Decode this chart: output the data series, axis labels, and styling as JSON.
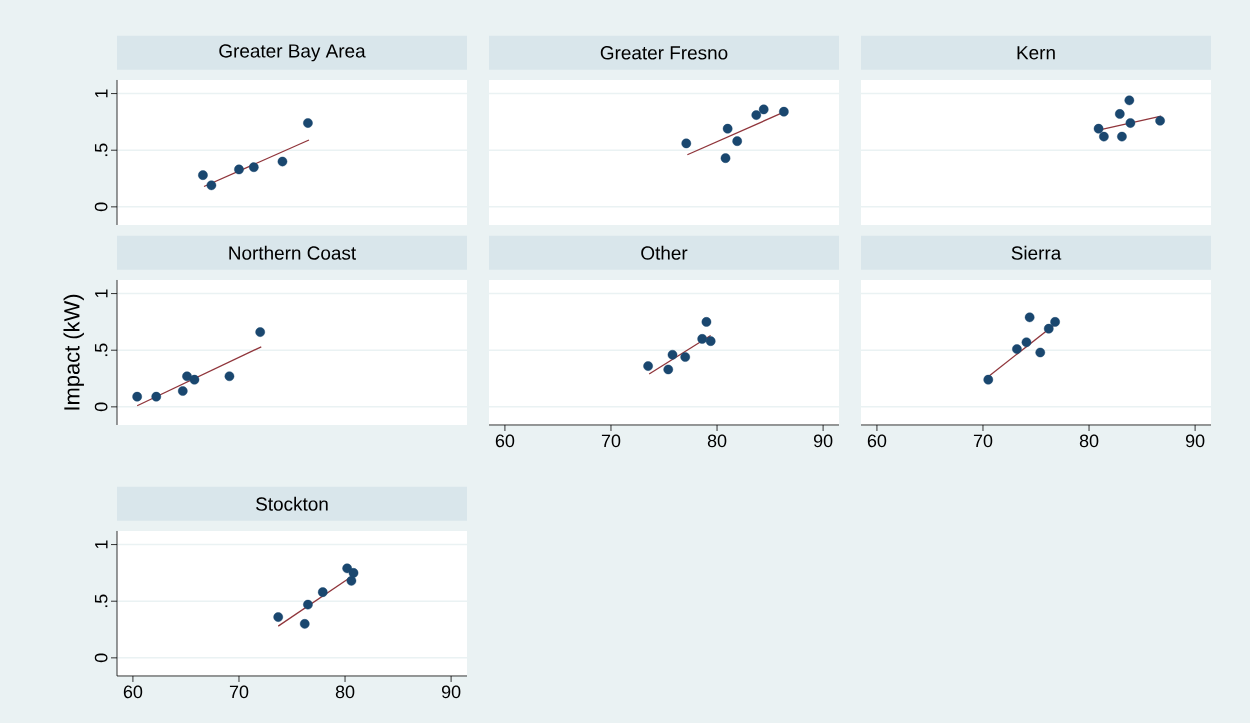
{
  "chart_data": [
    {
      "type": "scatter",
      "title": "Greater Bay Area",
      "xlim": [
        58.5,
        91.5
      ],
      "ylim": [
        -0.16,
        1.12
      ],
      "xticks": [
        60,
        70,
        80,
        90
      ],
      "yticks": [
        {
          "value": 0,
          "label": "0"
        },
        {
          "value": 0.5,
          "label": ".5"
        },
        {
          "value": 1,
          "label": "1"
        }
      ],
      "grid": "y",
      "line_style": "solid",
      "tick_labels": "y",
      "series": [
        {
          "marker": "circle",
          "color": "#1a476f",
          "x": [
            66.6,
            67.4,
            70.0,
            71.4,
            74.1,
            76.5
          ],
          "values": [
            0.28,
            0.19,
            0.33,
            0.35,
            0.4,
            0.74
          ]
        },
        {
          "type": "line",
          "marker": "none",
          "color": "#90353b",
          "x": [
            66.7,
            76.6
          ],
          "values": [
            0.18,
            0.59
          ]
        }
      ]
    },
    {
      "type": "scatter",
      "title": "Greater Fresno",
      "xlim": [
        58.5,
        91.5
      ],
      "ylim": [
        -0.16,
        1.12
      ],
      "xticks": [
        60,
        70,
        80,
        90
      ],
      "yticks": [
        {
          "value": 0,
          "label": null
        },
        {
          "value": 0.5,
          "label": null
        },
        {
          "value": 1,
          "label": null
        }
      ],
      "grid": "y",
      "line_style": "solid",
      "tick_labels": false,
      "series": [
        {
          "marker": "circle",
          "color": "#1a476f",
          "x": [
            77.1,
            81.0,
            80.8,
            81.9,
            83.7,
            84.4,
            86.3
          ],
          "values": [
            0.56,
            0.69,
            0.43,
            0.58,
            0.81,
            0.86,
            0.84
          ]
        },
        {
          "type": "line",
          "marker": "none",
          "color": "#90353b",
          "x": [
            77.2,
            86.4
          ],
          "values": [
            0.46,
            0.84
          ]
        }
      ]
    },
    {
      "type": "scatter",
      "title": "Kern",
      "xlim": [
        58.5,
        91.5
      ],
      "ylim": [
        -0.16,
        1.12
      ],
      "xticks": [
        60,
        70,
        80,
        90
      ],
      "yticks": [
        {
          "value": 0,
          "label": null
        },
        {
          "value": 0.5,
          "label": null
        },
        {
          "value": 1,
          "label": null
        }
      ],
      "grid": "y",
      "line_style": "solid",
      "tick_labels": false,
      "series": [
        {
          "marker": "circle",
          "color": "#1a476f",
          "x": [
            80.9,
            81.4,
            82.9,
            83.1,
            83.8,
            83.9,
            86.7
          ],
          "values": [
            0.69,
            0.62,
            0.82,
            0.62,
            0.94,
            0.74,
            0.76
          ]
        },
        {
          "type": "line",
          "marker": "none",
          "color": "#90353b",
          "x": [
            81.0,
            86.8
          ],
          "values": [
            0.68,
            0.8
          ]
        }
      ]
    },
    {
      "type": "scatter",
      "title": "Northern Coast",
      "ylabel": "Impact (kW)",
      "xlim": [
        58.5,
        91.5
      ],
      "ylim": [
        -0.16,
        1.12
      ],
      "xticks": [
        60,
        70,
        80,
        90
      ],
      "yticks": [
        {
          "value": 0,
          "label": "0"
        },
        {
          "value": 0.5,
          "label": ".5"
        },
        {
          "value": 1,
          "label": "1"
        }
      ],
      "grid": "y",
      "line_style": "solid",
      "tick_labels": "y",
      "series": [
        {
          "marker": "circle",
          "color": "#1a476f",
          "x": [
            60.4,
            62.2,
            64.7,
            65.1,
            65.8,
            69.1,
            72.0
          ],
          "values": [
            0.09,
            0.09,
            0.14,
            0.27,
            0.24,
            0.27,
            0.66
          ]
        },
        {
          "type": "line",
          "marker": "none",
          "color": "#90353b",
          "x": [
            60.4,
            72.1
          ],
          "values": [
            0.01,
            0.53
          ]
        }
      ]
    },
    {
      "type": "scatter",
      "title": "Other",
      "xlim": [
        58.5,
        91.5
      ],
      "ylim": [
        -0.16,
        1.12
      ],
      "xticks": [
        60,
        70,
        80,
        90
      ],
      "yticks": [
        {
          "value": 0,
          "label": null
        },
        {
          "value": 0.5,
          "label": null
        },
        {
          "value": 1,
          "label": null
        }
      ],
      "grid": "y",
      "line_style": "solid",
      "tick_labels": "x",
      "series": [
        {
          "marker": "circle",
          "color": "#1a476f",
          "x": [
            73.5,
            75.4,
            75.8,
            77.0,
            78.6,
            79.0,
            79.4
          ],
          "values": [
            0.36,
            0.33,
            0.46,
            0.44,
            0.6,
            0.75,
            0.58
          ]
        },
        {
          "type": "line",
          "marker": "none",
          "color": "#90353b",
          "x": [
            73.6,
            79.4
          ],
          "values": [
            0.29,
            0.63
          ]
        }
      ]
    },
    {
      "type": "scatter",
      "title": "Sierra",
      "xlim": [
        58.5,
        91.5
      ],
      "ylim": [
        -0.16,
        1.12
      ],
      "xticks": [
        60,
        70,
        80,
        90
      ],
      "yticks": [
        {
          "value": 0,
          "label": null
        },
        {
          "value": 0.5,
          "label": null
        },
        {
          "value": 1,
          "label": null
        }
      ],
      "grid": "y",
      "line_style": "solid",
      "tick_labels": "x",
      "series": [
        {
          "marker": "circle",
          "color": "#1a476f",
          "x": [
            70.5,
            73.2,
            74.1,
            74.4,
            75.4,
            76.2,
            76.8
          ],
          "values": [
            0.24,
            0.51,
            0.57,
            0.79,
            0.48,
            0.69,
            0.75
          ]
        },
        {
          "type": "line",
          "marker": "none",
          "color": "#90353b",
          "x": [
            70.4,
            76.8
          ],
          "values": [
            0.26,
            0.73
          ]
        }
      ]
    },
    {
      "type": "scatter",
      "title": "Stockton",
      "xlim": [
        58.5,
        91.5
      ],
      "ylim": [
        -0.16,
        1.12
      ],
      "xticks": [
        60,
        70,
        80,
        90
      ],
      "yticks": [
        {
          "value": 0,
          "label": "0"
        },
        {
          "value": 0.5,
          "label": ".5"
        },
        {
          "value": 1,
          "label": "1"
        }
      ],
      "grid": "y",
      "line_style": "solid",
      "series": [
        {
          "marker": "circle",
          "color": "#1a476f",
          "x": [
            73.7,
            76.2,
            76.5,
            77.9,
            80.2,
            80.6,
            80.8
          ],
          "values": [
            0.36,
            0.3,
            0.47,
            0.58,
            0.79,
            0.68,
            0.75
          ]
        },
        {
          "type": "line",
          "marker": "none",
          "color": "#90353b",
          "x": [
            73.7,
            80.8
          ],
          "values": [
            0.28,
            0.73
          ]
        }
      ]
    }
  ]
}
